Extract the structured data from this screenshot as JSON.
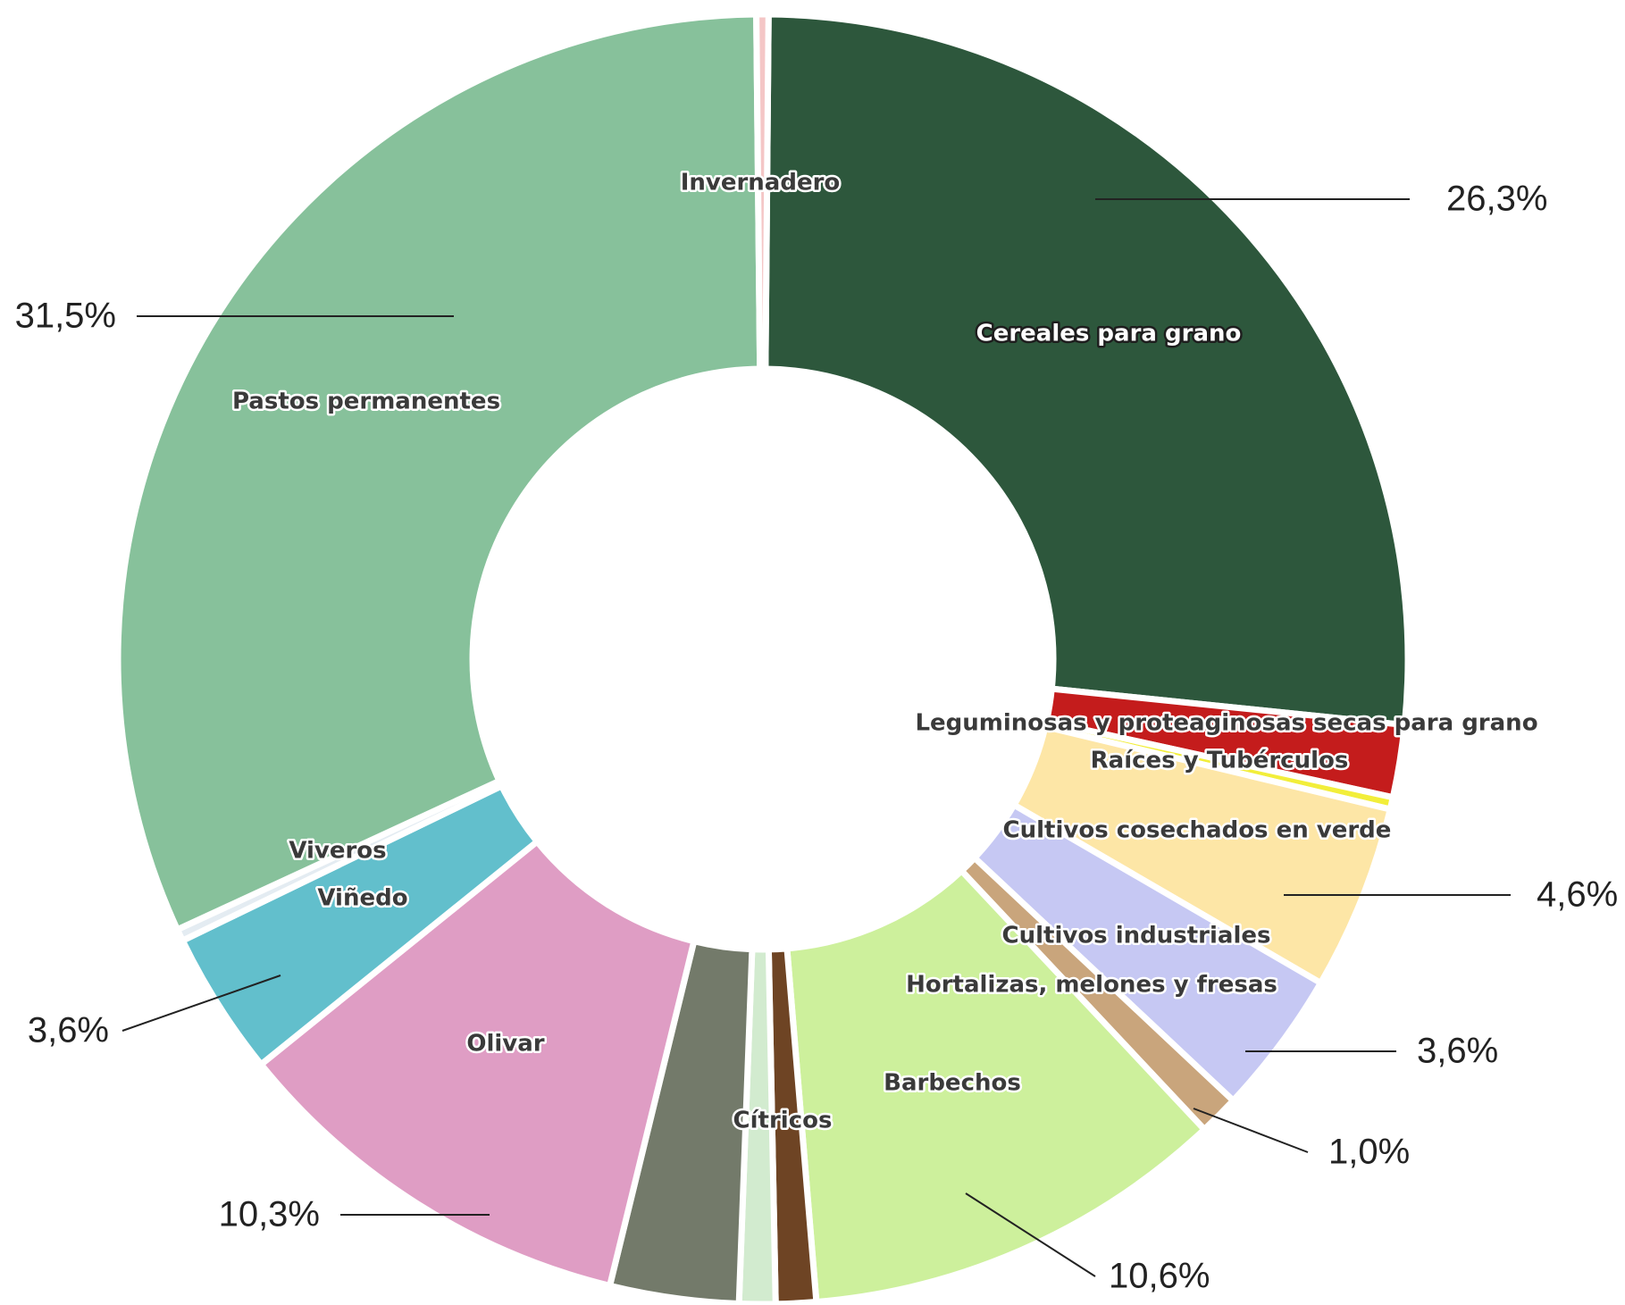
{
  "chart_data": {
    "type": "pie",
    "donut": true,
    "categories": [
      "Cereales para grano",
      "Leguminosas y proteaginosas secas para grano",
      "Raíces y Tubérculos",
      "Cultivos cosechados en verde",
      "Cultivos industriales",
      "Hortalizas, melones y fresas",
      "Barbechos",
      null,
      "Cítricos",
      null,
      "Olivar",
      "Viñedo",
      "Viveros",
      "Pastos permanentes",
      "Invernadero"
    ],
    "values": [
      26.3,
      1.8,
      0.3,
      4.6,
      3.6,
      1.0,
      10.6,
      1.0,
      0.9,
      3.2,
      10.3,
      3.6,
      0.3,
      31.5,
      0.3
    ],
    "value_labels": [
      "26,3%",
      null,
      null,
      "4,6%",
      "3,6%",
      "1,0%",
      "10,6%",
      null,
      null,
      null,
      "10,3%",
      "3,6%",
      null,
      "31,5%",
      null
    ],
    "colors": [
      "#2d573c",
      "#c41c1c",
      "#f2ee3a",
      "#fde6a6",
      "#c6c8f3",
      "#c9a57c",
      "#cdf09c",
      "#6e4424",
      "#d2ebcf",
      "#737a6a",
      "#df9dc4",
      "#62bfcc",
      "#e4ecf2",
      "#87c19b",
      "#f4c6c6"
    ]
  }
}
